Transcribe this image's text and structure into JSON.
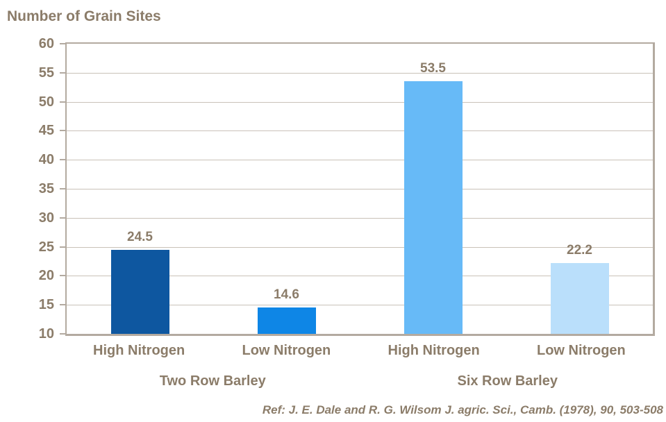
{
  "chart_data": {
    "type": "bar",
    "title": "Number of Grain Sites",
    "categories": [
      "High Nitrogen",
      "Low Nitrogen",
      "High Nitrogen",
      "Low Nitrogen"
    ],
    "groups": [
      "Two Row Barley",
      "Six Row Barley"
    ],
    "values": [
      24.5,
      14.6,
      53.5,
      22.2
    ],
    "value_labels": [
      "24.5",
      "14.6",
      "53.5",
      "22.2"
    ],
    "bar_colors": [
      "#0E57A0",
      "#0E86E6",
      "#67BAF7",
      "#BADFFB"
    ],
    "ylim": [
      10,
      60
    ],
    "ytick_step": 5,
    "grid": true,
    "legend": "none",
    "reference": "Ref: J. E. Dale and R. G. Wilsom J. agric. Sci., Camb. (1978), 90, 503-508"
  },
  "colors": {
    "text": "#8B7C69",
    "axis": "#B3AAA0",
    "grid": "#C9C1B8",
    "background": "#FFFFFF"
  }
}
